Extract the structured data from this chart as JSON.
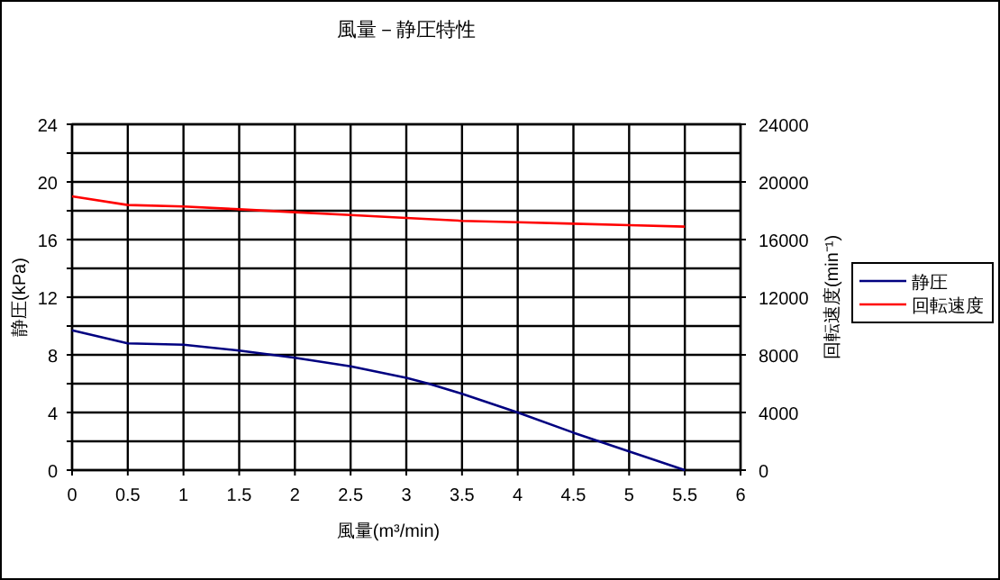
{
  "chart_data": {
    "type": "line",
    "title": "風量－静圧特性",
    "xlabel": "風量(m³/min)",
    "ylabel": "静圧(kPa)",
    "y2label": "回転速度(min⁻¹)",
    "xlim": [
      0,
      6
    ],
    "xticks": [
      0,
      0.5,
      1,
      1.5,
      2,
      2.5,
      3,
      3.5,
      4,
      4.5,
      5,
      5.5,
      6
    ],
    "ylim": [
      0,
      24
    ],
    "yticks": [
      0,
      {
        "value": 2,
        "label": null
      },
      4,
      {
        "value": 6,
        "label": null
      },
      8,
      {
        "value": 10,
        "label": null
      },
      12,
      {
        "value": 14,
        "label": null
      },
      16,
      {
        "value": 18,
        "label": null
      },
      20,
      {
        "value": 22,
        "label": null
      },
      24
    ],
    "y2lim": [
      0,
      24000
    ],
    "y2ticks": [
      0,
      4000,
      8000,
      12000,
      16000,
      20000,
      24000
    ],
    "grid": true,
    "legend": "right",
    "marker": "none",
    "series": [
      {
        "name": "静圧",
        "color": "#000080",
        "x": [
          0,
          0.5,
          1,
          1.5,
          2,
          2.5,
          3,
          3.2,
          3.5,
          4,
          4.5,
          5,
          5.5
        ],
        "values": [
          9.7,
          8.8,
          8.7,
          8.3,
          7.8,
          7.2,
          6.4,
          6.0,
          5.3,
          4.0,
          2.6,
          1.3,
          0
        ]
      },
      {
        "name": "回転速度",
        "color": "#ff0000",
        "axis": "y2",
        "x": [
          0,
          0.5,
          1,
          1.5,
          2,
          2.5,
          3,
          3.5,
          4,
          4.5,
          5,
          5.5
        ],
        "values": [
          19000,
          18400,
          18300,
          18100,
          17900,
          17700,
          17500,
          17300,
          17200,
          17100,
          17000,
          16900
        ]
      }
    ]
  }
}
